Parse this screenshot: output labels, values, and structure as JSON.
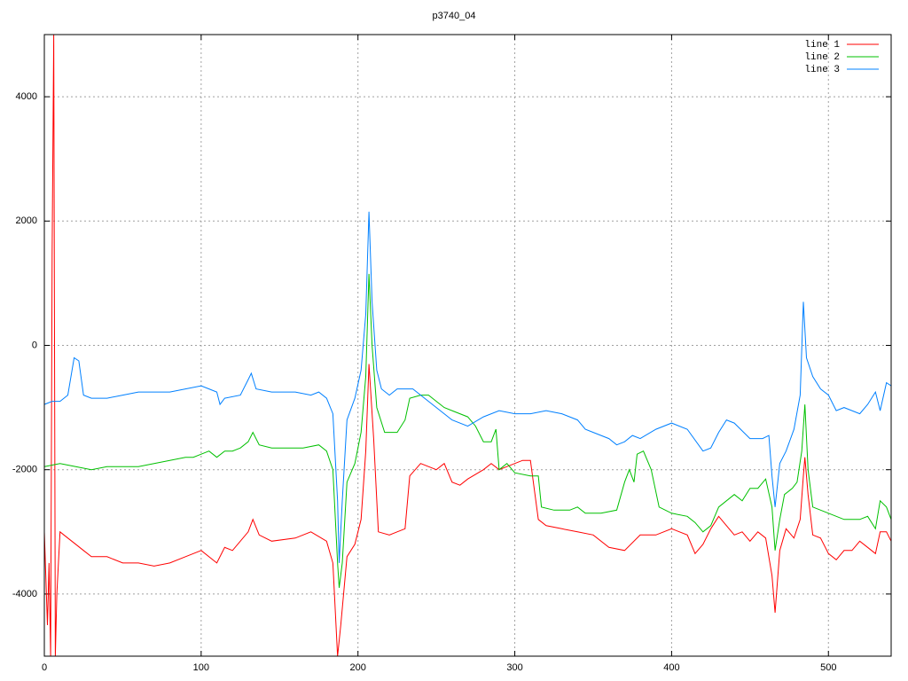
{
  "chart_data": {
    "type": "line",
    "title": "p3740_04",
    "xlim": [
      0,
      540
    ],
    "xticks": [
      0,
      100,
      200,
      300,
      400,
      500
    ],
    "ylim": [
      -5000,
      5000
    ],
    "yticks": [
      -4000,
      -2000,
      0,
      2000,
      4000
    ],
    "grid": true,
    "legend": "top-right",
    "series": [
      {
        "name": "line 1",
        "color": "#ff0000",
        "x": [
          0,
          2,
          3,
          4,
          5,
          6,
          7,
          8,
          10,
          15,
          20,
          25,
          30,
          40,
          50,
          60,
          70,
          80,
          90,
          100,
          110,
          115,
          120,
          130,
          133,
          137,
          145,
          160,
          170,
          180,
          184,
          187,
          189,
          193,
          198,
          202,
          205,
          207,
          210,
          213,
          220,
          225,
          230,
          233,
          240,
          250,
          255,
          260,
          265,
          270,
          280,
          285,
          290,
          295,
          300,
          305,
          310,
          315,
          320,
          330,
          340,
          350,
          360,
          370,
          380,
          390,
          400,
          410,
          415,
          420,
          425,
          430,
          435,
          440,
          445,
          450,
          455,
          460,
          464,
          466,
          469,
          473,
          478,
          482,
          484,
          485,
          487,
          490,
          495,
          500,
          505,
          510,
          515,
          520,
          525,
          530,
          533,
          537,
          540
        ],
        "values": [
          -3000,
          -4500,
          -3500,
          -5000,
          1500,
          5000,
          -5000,
          -4000,
          -3000,
          -3100,
          -3200,
          -3300,
          -3400,
          -3400,
          -3500,
          -3500,
          -3550,
          -3500,
          -3400,
          -3300,
          -3500,
          -3250,
          -3300,
          -3000,
          -2800,
          -3050,
          -3150,
          -3100,
          -3000,
          -3150,
          -3500,
          -5000,
          -4500,
          -3400,
          -3200,
          -2800,
          -1700,
          -300,
          -1500,
          -3000,
          -3050,
          -3000,
          -2950,
          -2100,
          -1900,
          -2000,
          -1900,
          -2200,
          -2250,
          -2150,
          -2000,
          -1900,
          -2000,
          -1950,
          -1900,
          -1850,
          -1850,
          -2800,
          -2900,
          -2950,
          -3000,
          -3050,
          -3250,
          -3300,
          -3050,
          -3050,
          -2950,
          -3050,
          -3350,
          -3200,
          -2950,
          -2750,
          -2900,
          -3050,
          -3000,
          -3150,
          -3000,
          -3100,
          -3700,
          -4300,
          -3300,
          -2950,
          -3100,
          -2800,
          -2100,
          -1800,
          -2400,
          -3050,
          -3100,
          -3350,
          -3450,
          -3300,
          -3300,
          -3150,
          -3250,
          -3350,
          -3000,
          -3000,
          -3150
        ]
      },
      {
        "name": "line 2",
        "color": "#00c000",
        "x": [
          0,
          10,
          20,
          30,
          40,
          50,
          60,
          70,
          80,
          90,
          95,
          100,
          105,
          110,
          115,
          120,
          125,
          130,
          133,
          137,
          145,
          155,
          165,
          175,
          180,
          184,
          187,
          188,
          190,
          193,
          198,
          202,
          205,
          207,
          209,
          212,
          217,
          225,
          230,
          233,
          240,
          245,
          250,
          255,
          260,
          270,
          275,
          280,
          285,
          288,
          290,
          295,
          300,
          310,
          315,
          317,
          325,
          335,
          340,
          345,
          355,
          365,
          370,
          373,
          376,
          378,
          382,
          387,
          392,
          400,
          410,
          415,
          420,
          425,
          430,
          440,
          445,
          450,
          455,
          460,
          464,
          466,
          469,
          472,
          477,
          480,
          483,
          485,
          487,
          490,
          500,
          510,
          520,
          525,
          530,
          533,
          537,
          540
        ],
        "values": [
          -1950,
          -1900,
          -1950,
          -2000,
          -1950,
          -1950,
          -1950,
          -1900,
          -1850,
          -1800,
          -1800,
          -1750,
          -1700,
          -1800,
          -1700,
          -1700,
          -1650,
          -1550,
          -1400,
          -1600,
          -1650,
          -1650,
          -1650,
          -1600,
          -1700,
          -2000,
          -3500,
          -3900,
          -3500,
          -2200,
          -1900,
          -1400,
          -500,
          1150,
          0,
          -1000,
          -1400,
          -1400,
          -1200,
          -850,
          -800,
          -800,
          -900,
          -1000,
          -1050,
          -1150,
          -1300,
          -1550,
          -1550,
          -1350,
          -2000,
          -1900,
          -2050,
          -2100,
          -2100,
          -2600,
          -2650,
          -2650,
          -2600,
          -2700,
          -2700,
          -2650,
          -2200,
          -2000,
          -2200,
          -1750,
          -1700,
          -2000,
          -2600,
          -2700,
          -2750,
          -2850,
          -3000,
          -2900,
          -2600,
          -2400,
          -2500,
          -2300,
          -2300,
          -2150,
          -2600,
          -3300,
          -2800,
          -2400,
          -2300,
          -2200,
          -1700,
          -950,
          -2000,
          -2600,
          -2700,
          -2800,
          -2800,
          -2750,
          -2950,
          -2500,
          -2600,
          -2800
        ]
      },
      {
        "name": "line 3",
        "color": "#0080ff",
        "x": [
          0,
          5,
          10,
          15,
          19,
          22,
          25,
          30,
          40,
          50,
          60,
          70,
          80,
          90,
          100,
          105,
          110,
          112,
          115,
          125,
          130,
          132,
          135,
          145,
          160,
          170,
          175,
          180,
          184,
          187,
          188,
          190,
          193,
          198,
          202,
          205,
          207,
          209,
          212,
          215,
          220,
          225,
          235,
          240,
          250,
          260,
          270,
          280,
          290,
          300,
          310,
          320,
          330,
          340,
          345,
          350,
          360,
          365,
          370,
          375,
          380,
          390,
          400,
          410,
          420,
          425,
          430,
          435,
          440,
          450,
          458,
          462,
          464,
          466,
          469,
          473,
          478,
          482,
          484,
          486,
          490,
          495,
          500,
          505,
          510,
          515,
          520,
          525,
          530,
          533,
          537,
          540
        ],
        "values": [
          -950,
          -900,
          -900,
          -800,
          -200,
          -250,
          -800,
          -850,
          -850,
          -800,
          -750,
          -750,
          -750,
          -700,
          -650,
          -700,
          -750,
          -950,
          -850,
          -800,
          -550,
          -450,
          -700,
          -750,
          -750,
          -800,
          -750,
          -850,
          -1100,
          -2500,
          -3500,
          -2500,
          -1200,
          -850,
          -400,
          500,
          2150,
          700,
          -400,
          -700,
          -800,
          -700,
          -700,
          -800,
          -1000,
          -1200,
          -1300,
          -1150,
          -1050,
          -1100,
          -1100,
          -1050,
          -1100,
          -1200,
          -1350,
          -1400,
          -1500,
          -1600,
          -1550,
          -1450,
          -1500,
          -1350,
          -1250,
          -1350,
          -1700,
          -1650,
          -1400,
          -1200,
          -1250,
          -1500,
          -1500,
          -1450,
          -2100,
          -2600,
          -1900,
          -1700,
          -1350,
          -800,
          700,
          -200,
          -500,
          -700,
          -800,
          -1050,
          -1000,
          -1050,
          -1100,
          -950,
          -750,
          -1050,
          -600,
          -650
        ]
      }
    ]
  }
}
